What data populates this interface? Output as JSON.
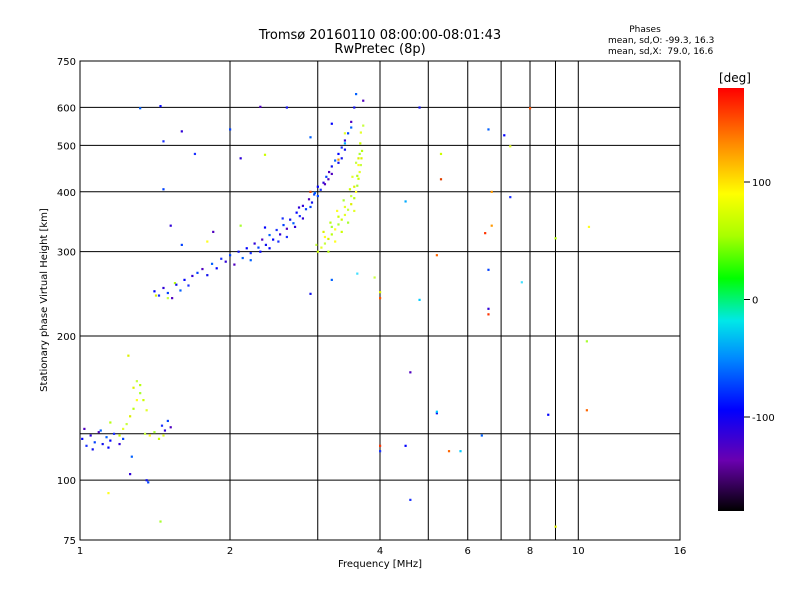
{
  "chart_data": {
    "type": "scatter",
    "title": "Tromsø 20160110 08:00:00-08:01:43",
    "subtitle": "RwPretec (8p)",
    "xlabel": "Frequency [MHz]",
    "ylabel": "Stationary phase Virtual Height [km]",
    "x_scale": "log",
    "y_scale": "log",
    "xlim": [
      1,
      16
    ],
    "ylim": [
      75,
      750
    ],
    "x_ticks": [
      1,
      2,
      4,
      6,
      8,
      10,
      16
    ],
    "x_tick_labels": [
      "1",
      "2",
      "4",
      "6",
      "8",
      "10",
      "16"
    ],
    "y_ticks": [
      75,
      100,
      200,
      300,
      400,
      500,
      600,
      750
    ],
    "y_tick_labels": [
      "75",
      "100",
      "200",
      "300",
      "400",
      "500",
      "600",
      "750"
    ],
    "x_minor_gridlines": [
      3,
      5,
      7,
      9
    ],
    "y_minor_gridlines": [
      125
    ],
    "grid": true,
    "colorbar": {
      "label": "[deg]",
      "range": [
        -180,
        180
      ],
      "ticks": [
        100,
        0,
        -100
      ],
      "tick_labels": [
        "100",
        "0",
        "-100"
      ]
    },
    "legend": {
      "title": "Phases",
      "line_o": "mean, sd,O: -99.3, 16.3",
      "line_x": "mean, sd,X:  79.0, 16.6"
    },
    "o_mode": {
      "phase_mean": -99.3,
      "phase_sd": 16.3,
      "points": [
        [
          1.01,
          122
        ],
        [
          1.03,
          118
        ],
        [
          1.05,
          124
        ],
        [
          1.07,
          120
        ],
        [
          1.09,
          126
        ],
        [
          1.11,
          119
        ],
        [
          1.13,
          123
        ],
        [
          1.15,
          121
        ],
        [
          1.17,
          125
        ],
        [
          1.2,
          119
        ],
        [
          1.22,
          122
        ],
        [
          1.02,
          128
        ],
        [
          1.06,
          116
        ],
        [
          1.1,
          127
        ],
        [
          1.14,
          117
        ],
        [
          1.46,
          130
        ],
        [
          1.48,
          127
        ],
        [
          1.5,
          133
        ],
        [
          1.52,
          129
        ],
        [
          1.36,
          100
        ],
        [
          1.27,
          112
        ],
        [
          1.41,
          248
        ],
        [
          1.44,
          243
        ],
        [
          1.47,
          252
        ],
        [
          1.5,
          246
        ],
        [
          1.53,
          240
        ],
        [
          1.56,
          256
        ],
        [
          1.59,
          249
        ],
        [
          1.62,
          262
        ],
        [
          1.65,
          255
        ],
        [
          1.68,
          267
        ],
        [
          1.72,
          271
        ],
        [
          1.76,
          276
        ],
        [
          1.8,
          268
        ],
        [
          1.84,
          283
        ],
        [
          1.88,
          277
        ],
        [
          1.92,
          290
        ],
        [
          1.96,
          286
        ],
        [
          2.0,
          295
        ],
        [
          2.04,
          282
        ],
        [
          2.08,
          300
        ],
        [
          2.12,
          291
        ],
        [
          2.16,
          305
        ],
        [
          2.2,
          298
        ],
        [
          2.24,
          312
        ],
        [
          2.28,
          306
        ],
        [
          2.32,
          318
        ],
        [
          2.36,
          310
        ],
        [
          2.4,
          325
        ],
        [
          2.44,
          318
        ],
        [
          2.48,
          333
        ],
        [
          2.52,
          326
        ],
        [
          2.56,
          341
        ],
        [
          2.6,
          335
        ],
        [
          2.64,
          350
        ],
        [
          2.68,
          344
        ],
        [
          2.72,
          362
        ],
        [
          2.76,
          356
        ],
        [
          2.8,
          374
        ],
        [
          2.84,
          368
        ],
        [
          2.88,
          386
        ],
        [
          2.92,
          380
        ],
        [
          2.96,
          398
        ],
        [
          3.0,
          410
        ],
        [
          3.04,
          404
        ],
        [
          3.08,
          418
        ],
        [
          3.12,
          430
        ],
        [
          3.16,
          440
        ],
        [
          3.2,
          452
        ],
        [
          3.25,
          465
        ],
        [
          3.3,
          480
        ],
        [
          3.35,
          495
        ],
        [
          3.4,
          512
        ],
        [
          3.45,
          530
        ],
        [
          3.5,
          560
        ],
        [
          3.55,
          600
        ],
        [
          3.58,
          640
        ],
        [
          2.3,
          300
        ],
        [
          2.5,
          315
        ],
        [
          2.7,
          338
        ],
        [
          2.9,
          372
        ],
        [
          3.1,
          415
        ],
        [
          3.3,
          460
        ],
        [
          2.2,
          288
        ],
        [
          2.4,
          305
        ],
        [
          2.6,
          322
        ],
        [
          2.8,
          352
        ],
        [
          3.0,
          392
        ],
        [
          3.2,
          436
        ],
        [
          3.4,
          490
        ],
        [
          3.5,
          545
        ],
        [
          2.35,
          337
        ],
        [
          2.55,
          352
        ],
        [
          2.75,
          371
        ],
        [
          2.95,
          395
        ],
        [
          3.15,
          425
        ],
        [
          3.35,
          470
        ],
        [
          1.32,
          598
        ],
        [
          1.45,
          604
        ],
        [
          1.47,
          510
        ],
        [
          1.6,
          535
        ],
        [
          2.0,
          540
        ],
        [
          2.3,
          602
        ],
        [
          2.6,
          600
        ],
        [
          2.9,
          520
        ],
        [
          3.2,
          555
        ],
        [
          1.7,
          480
        ],
        [
          2.1,
          470
        ],
        [
          1.47,
          405
        ],
        [
          3.7,
          620
        ],
        [
          4.8,
          600
        ],
        [
          6.6,
          540
        ],
        [
          7.1,
          525
        ],
        [
          7.3,
          390
        ],
        [
          6.6,
          228
        ],
        [
          6.6,
          275
        ],
        [
          4.6,
          168
        ],
        [
          5.2,
          138
        ],
        [
          6.4,
          124
        ],
        [
          8.7,
          137
        ],
        [
          4.6,
          91
        ],
        [
          1.52,
          340
        ],
        [
          1.6,
          310
        ],
        [
          1.85,
          330
        ],
        [
          2.9,
          245
        ],
        [
          3.2,
          262
        ],
        [
          4.5,
          118
        ],
        [
          4.0,
          115
        ],
        [
          1.26,
          103
        ],
        [
          1.37,
          99
        ]
      ]
    },
    "x_mode": {
      "phase_mean": 79.0,
      "phase_sd": 16.6,
      "points": [
        [
          1.2,
          124
        ],
        [
          1.22,
          128
        ],
        [
          1.24,
          131
        ],
        [
          1.26,
          136
        ],
        [
          1.28,
          141
        ],
        [
          1.3,
          147
        ],
        [
          1.32,
          152
        ],
        [
          1.34,
          147
        ],
        [
          1.36,
          140
        ],
        [
          1.3,
          161
        ],
        [
          1.28,
          156
        ],
        [
          1.32,
          158
        ],
        [
          1.38,
          124
        ],
        [
          1.41,
          126
        ],
        [
          1.44,
          122
        ],
        [
          1.47,
          124
        ],
        [
          1.35,
          125
        ],
        [
          1.25,
          182
        ],
        [
          1.15,
          132
        ],
        [
          1.14,
          94
        ],
        [
          1.45,
          82
        ],
        [
          3.0,
          300
        ],
        [
          3.05,
          306
        ],
        [
          3.1,
          312
        ],
        [
          3.15,
          319
        ],
        [
          3.2,
          326
        ],
        [
          3.25,
          334
        ],
        [
          3.3,
          342
        ],
        [
          3.35,
          350
        ],
        [
          3.4,
          358
        ],
        [
          3.45,
          367
        ],
        [
          3.5,
          377
        ],
        [
          3.55,
          388
        ],
        [
          3.58,
          400
        ],
        [
          3.6,
          412
        ],
        [
          3.62,
          426
        ],
        [
          3.64,
          440
        ],
        [
          3.66,
          455
        ],
        [
          3.67,
          470
        ],
        [
          3.68,
          487
        ],
        [
          3.1,
          322
        ],
        [
          3.2,
          338
        ],
        [
          3.3,
          355
        ],
        [
          3.4,
          372
        ],
        [
          3.5,
          392
        ],
        [
          3.55,
          410
        ],
        [
          3.6,
          432
        ],
        [
          3.62,
          455
        ],
        [
          3.64,
          480
        ],
        [
          3.65,
          505
        ],
        [
          3.66,
          532
        ],
        [
          2.98,
          310
        ],
        [
          3.08,
          330
        ],
        [
          3.18,
          345
        ],
        [
          3.28,
          365
        ],
        [
          3.38,
          384
        ],
        [
          3.48,
          405
        ],
        [
          3.52,
          430
        ],
        [
          3.58,
          460
        ],
        [
          3.62,
          470
        ],
        [
          3.15,
          300
        ],
        [
          3.25,
          315
        ],
        [
          3.45,
          345
        ],
        [
          3.35,
          330
        ],
        [
          3.55,
          365
        ],
        [
          1.5,
          240
        ],
        [
          1.42,
          243
        ],
        [
          1.55,
          258
        ],
        [
          1.8,
          315
        ],
        [
          2.1,
          340
        ],
        [
          2.35,
          478
        ],
        [
          3.4,
          530
        ],
        [
          3.7,
          550
        ],
        [
          9.0,
          80
        ],
        [
          9.0,
          320
        ],
        [
          10.5,
          338
        ],
        [
          10.4,
          195
        ],
        [
          5.3,
          480
        ],
        [
          7.3,
          498
        ],
        [
          3.9,
          265
        ],
        [
          4.0,
          247
        ]
      ]
    },
    "other_points": [
      [
        5.2,
        295
      ],
      [
        4.8,
        238
      ],
      [
        6.5,
        328
      ],
      [
        6.7,
        400
      ],
      [
        4.5,
        382
      ],
      [
        5.3,
        425
      ],
      [
        7.7,
        259
      ],
      [
        8.0,
        598
      ],
      [
        10.4,
        140
      ],
      [
        5.2,
        139
      ],
      [
        4.0,
        118
      ],
      [
        3.3,
        467
      ],
      [
        3.4,
        505
      ],
      [
        2.9,
        400
      ],
      [
        3.6,
        270
      ],
      [
        4.0,
        240
      ],
      [
        5.5,
        115
      ],
      [
        5.8,
        115
      ],
      [
        6.6,
        222
      ],
      [
        6.7,
        340
      ]
    ]
  }
}
